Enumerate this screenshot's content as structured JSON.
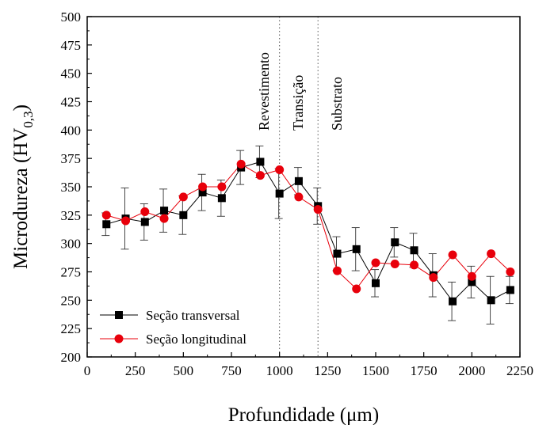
{
  "chart_data": {
    "type": "line",
    "title": "",
    "xlabel": "Profundidade (μm)",
    "ylabel": {
      "main": "Microdureza (HV",
      "sub": "0,3",
      "close": ")"
    },
    "xlim": [
      0,
      2250
    ],
    "ylim": [
      200,
      500
    ],
    "x_ticks": [
      0,
      250,
      500,
      750,
      1000,
      1250,
      1500,
      1750,
      2000,
      2250
    ],
    "y_ticks": [
      200,
      225,
      250,
      275,
      300,
      325,
      350,
      375,
      400,
      425,
      450,
      475,
      500
    ],
    "grid": false,
    "legend_position": "bottom-left",
    "regions": [
      {
        "label": "Revestimento",
        "boundary_x": 1000
      },
      {
        "label": "Transição",
        "boundary_x": 1200
      },
      {
        "label": "Substrato"
      }
    ],
    "x": [
      100,
      200,
      300,
      400,
      500,
      600,
      700,
      800,
      900,
      1000,
      1100,
      1200,
      1300,
      1400,
      1500,
      1600,
      1700,
      1800,
      1900,
      2000,
      2100,
      2200
    ],
    "series": [
      {
        "name": "Seção transversal",
        "color": "#000000",
        "marker": "square",
        "values": [
          317,
          322,
          319,
          329,
          325,
          345,
          340,
          367,
          372,
          344,
          355,
          333,
          291,
          295,
          265,
          301,
          294,
          272,
          249,
          266,
          250,
          259
        ],
        "errors": [
          10,
          27,
          16,
          19,
          17,
          16,
          16,
          15,
          14,
          22,
          12,
          16,
          15,
          19,
          12,
          13,
          15,
          19,
          17,
          14,
          21,
          12
        ]
      },
      {
        "name": "Seção longitudinal",
        "color": "#e8000b",
        "marker": "circle",
        "values": [
          325,
          320,
          328,
          322,
          341,
          350,
          350,
          370,
          360,
          365,
          341,
          330,
          276,
          260,
          283,
          282,
          281,
          270,
          290,
          271,
          291,
          275
        ]
      }
    ]
  }
}
